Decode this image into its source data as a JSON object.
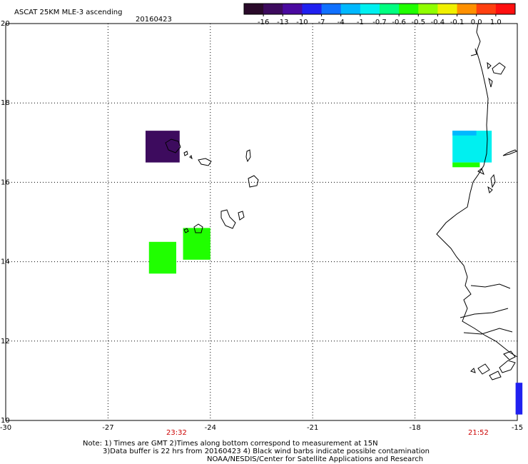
{
  "header": {
    "title": "ASCAT 25KM MLE-3 ascending",
    "date": "20160423"
  },
  "colorbar": {
    "colors": [
      "#2a0a2a",
      "#3d0b5e",
      "#4a0aa0",
      "#2020f0",
      "#1070ff",
      "#00b8ff",
      "#00f0f0",
      "#00ff80",
      "#20ff00",
      "#90ff00",
      "#f0f000",
      "#ff9000",
      "#ff4010",
      "#ff1010"
    ],
    "ticks": [
      "-16",
      "-13",
      "-10",
      "-7",
      "-4",
      "-1",
      "-0.7",
      "-0.6",
      "-0.5",
      "-0.4",
      "-0.1",
      "0.0",
      "1.0"
    ]
  },
  "map": {
    "lon_range": [
      -30,
      -15
    ],
    "lat_range": [
      10,
      20
    ],
    "x_ticks": [
      "-30",
      "-27",
      "-24",
      "-21",
      "-18",
      "-15"
    ],
    "y_ticks": [
      "20",
      "18",
      "16",
      "14",
      "12",
      "10"
    ],
    "time_labels": [
      "23:32",
      "21:52"
    ],
    "time_color": "#cc0000",
    "measurement_cells": [
      {
        "lon": [
          -25.9,
          -24.9
        ],
        "lat": [
          16.5,
          17.3
        ],
        "color": "#3d0b5e"
      },
      {
        "lon": [
          -24.8,
          -24.0
        ],
        "lat": [
          14.05,
          14.85
        ],
        "color": "#20ff00"
      },
      {
        "lon": [
          -25.8,
          -25.0
        ],
        "lat": [
          13.7,
          14.5
        ],
        "color": "#20ff00"
      },
      {
        "lon": [
          -16.9,
          -15.75
        ],
        "lat": [
          16.5,
          17.3
        ],
        "color": "#00f0f0"
      },
      {
        "lon": [
          -16.9,
          -16.1
        ],
        "lat": [
          16.38,
          16.5
        ],
        "color": "#20ff00"
      },
      {
        "lon": [
          -16.9,
          -16.2
        ],
        "lat": [
          17.18,
          17.3
        ],
        "color": "#00b8ff"
      },
      {
        "lon": [
          -15.05,
          -14.85
        ],
        "lat": [
          10.15,
          10.95
        ],
        "color": "#2020f0"
      }
    ]
  },
  "notes": {
    "line1": "Note: 1) Times are GMT 2)Times along bottom correspond to measurement at 15N",
    "line2": "3)Data buffer is 22 hrs from 20160423 4) Black wind barbs indicate possible contamination",
    "line3": "NOAA/NESDIS/Center for Satellite Applications and Research"
  }
}
